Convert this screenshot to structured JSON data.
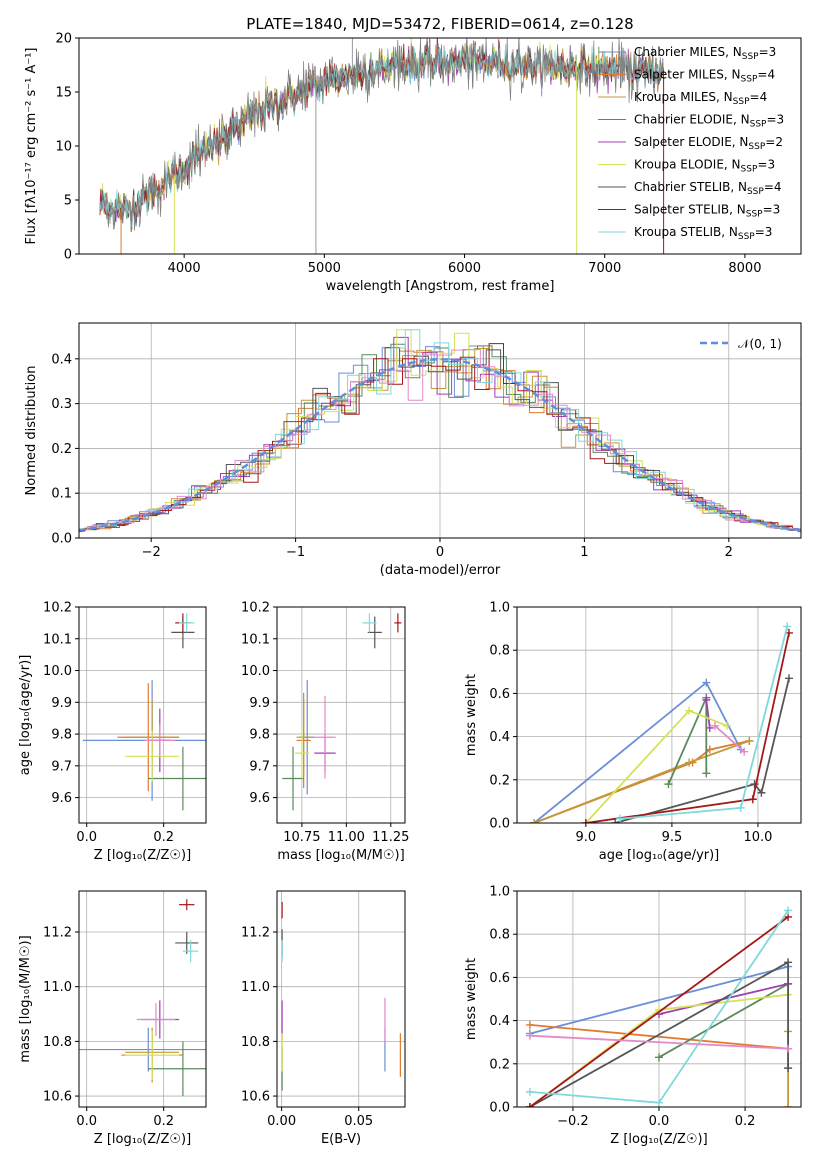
{
  "figure_title": "PLATE=1840, MJD=53472, FIBERID=0614, z=0.128",
  "colors": {
    "Chabrier MILES": "#6a8fd6",
    "Salpeter MILES": "#e07b30",
    "Kroupa MILES": "#c29a3a",
    "Chabrier ELODIE": "#5b8a5b",
    "Salpeter ELODIE": "#a33db3",
    "Kroupa ELODIE": "#d4e157",
    "Chabrier STELIB": "#555555",
    "Salpeter STELIB": "#a31818",
    "Kroupa STELIB": "#80d8dc",
    "extra_pink": "#e58ac9",
    "normal_curve": "#5b8ee0"
  },
  "chart_data": [
    {
      "id": "spectrum",
      "type": "line",
      "title": "PLATE=1840, MJD=53472, FIBERID=0614, z=0.128",
      "xlabel": "wavelength [Angstrom, rest frame]",
      "ylabel": "Flux [fλ10⁻¹⁷ erg cm⁻² s⁻¹ A⁻¹]",
      "xlim": [
        3250,
        8400
      ],
      "ylim": [
        0,
        20
      ],
      "xticks": [
        4000,
        5000,
        6000,
        7000,
        8000
      ],
      "yticks": [
        0,
        5,
        10,
        15,
        20
      ],
      "continuum": {
        "x": [
          3400,
          3600,
          3800,
          4000,
          4200,
          4500,
          5000,
          5500,
          6000,
          6500,
          7000,
          7400
        ],
        "y": [
          4.5,
          4.0,
          6.0,
          8.0,
          10.0,
          13.0,
          16.0,
          17.5,
          17.8,
          17.5,
          17.2,
          17.0
        ]
      },
      "legend": [
        {
          "name": "Chabrier MILES",
          "nssp": "3"
        },
        {
          "name": "Salpeter MILES",
          "nssp": "4"
        },
        {
          "name": "Kroupa MILES",
          "nssp": "4"
        },
        {
          "name": "Chabrier ELODIE",
          "nssp": "3"
        },
        {
          "name": "Salpeter ELODIE",
          "nssp": "2"
        },
        {
          "name": "Kroupa ELODIE",
          "nssp": "3"
        },
        {
          "name": "Chabrier STELIB",
          "nssp": "4"
        },
        {
          "name": "Salpeter STELIB",
          "nssp": "3"
        },
        {
          "name": "Kroupa STELIB",
          "nssp": "3"
        }
      ],
      "legend_placement": "right"
    },
    {
      "id": "residuals",
      "type": "step",
      "xlabel": "(data-model)/error",
      "ylabel": "Normed distribution",
      "xlim": [
        -2.5,
        2.5
      ],
      "ylim": [
        0,
        0.48
      ],
      "xticks": [
        -2,
        -1,
        0,
        1,
        2
      ],
      "yticks": [
        0.0,
        0.1,
        0.2,
        0.3,
        0.4
      ],
      "grid": true,
      "legend": "𝒩(0, 1)",
      "legend_placement": "top-right"
    },
    {
      "id": "age_vs_Z",
      "type": "errorbar",
      "xlabel": "Z [log₁₀(Z/Z☉)]",
      "ylabel": "age  [log₁₀(age/yr)]",
      "xlim": [
        -0.02,
        0.31
      ],
      "ylim": [
        9.52,
        10.2
      ],
      "xticks": [
        0.0,
        0.2
      ],
      "yticks": [
        9.6,
        9.7,
        9.8,
        9.9,
        10.0,
        10.1,
        10.2
      ],
      "grid": true,
      "points": [
        {
          "model": "Chabrier MILES",
          "x": 0.17,
          "y": 9.78,
          "xerr": 0.18,
          "yerr": 0.19
        },
        {
          "model": "Salpeter MILES",
          "x": 0.16,
          "y": 9.79,
          "xerr": 0.08,
          "yerr": 0.17
        },
        {
          "model": "Kroupa MILES",
          "x": 0.17,
          "y": 9.79,
          "xerr": 0.07,
          "yerr": 0.12
        },
        {
          "model": "Chabrier ELODIE",
          "x": 0.25,
          "y": 9.66,
          "xerr": 0.09,
          "yerr": 0.1
        },
        {
          "model": "Salpeter ELODIE",
          "x": 0.19,
          "y": 9.78,
          "xerr": 0.03,
          "yerr": 0.1
        },
        {
          "model": "Kroupa ELODIE",
          "x": 0.17,
          "y": 9.73,
          "xerr": 0.07,
          "yerr": 0.08
        },
        {
          "model": "Chabrier STELIB",
          "x": 0.25,
          "y": 10.12,
          "xerr": 0.03,
          "yerr": 0.05
        },
        {
          "model": "Salpeter STELIB",
          "x": 0.25,
          "y": 10.15,
          "xerr": 0.02,
          "yerr": 0.03
        },
        {
          "model": "Kroupa STELIB",
          "x": 0.26,
          "y": 10.15,
          "xerr": 0.02,
          "yerr": 0.03
        },
        {
          "model": "extra_pink",
          "x": 0.19,
          "y": 9.78,
          "xerr": 0.04,
          "yerr": 0.05
        }
      ]
    },
    {
      "id": "age_vs_mass",
      "type": "errorbar",
      "xlabel": "mass [log₁₀(M/M☉)]",
      "ylabel": "",
      "xlim": [
        10.61,
        11.33
      ],
      "ylim": [
        9.52,
        10.2
      ],
      "xticks": [
        10.75,
        11.0,
        11.25
      ],
      "yticks": [
        9.6,
        9.7,
        9.8,
        9.9,
        10.0,
        10.1,
        10.2
      ],
      "grid": true,
      "points": [
        {
          "model": "Chabrier MILES",
          "x": 10.78,
          "y": 9.79,
          "xerr": 0.04,
          "yerr": 0.18
        },
        {
          "model": "Salpeter MILES",
          "x": 10.76,
          "y": 9.78,
          "xerr": 0.04,
          "yerr": 0.15
        },
        {
          "model": "Kroupa MILES",
          "x": 10.76,
          "y": 9.79,
          "xerr": 0.04,
          "yerr": 0.12
        },
        {
          "model": "Chabrier ELODIE",
          "x": 10.7,
          "y": 9.66,
          "xerr": 0.06,
          "yerr": 0.1
        },
        {
          "model": "Salpeter ELODIE",
          "x": 10.88,
          "y": 9.74,
          "xerr": 0.06,
          "yerr": 0.06
        },
        {
          "model": "Kroupa ELODIE",
          "x": 10.75,
          "y": 9.74,
          "xerr": 0.04,
          "yerr": 0.08
        },
        {
          "model": "Chabrier STELIB",
          "x": 11.16,
          "y": 10.12,
          "xerr": 0.04,
          "yerr": 0.05
        },
        {
          "model": "Salpeter STELIB",
          "x": 11.29,
          "y": 10.15,
          "xerr": 0.02,
          "yerr": 0.03
        },
        {
          "model": "Kroupa STELIB",
          "x": 11.13,
          "y": 10.15,
          "xerr": 0.04,
          "yerr": 0.03
        },
        {
          "model": "extra_pink",
          "x": 10.88,
          "y": 9.79,
          "xerr": 0.06,
          "yerr": 0.13
        }
      ]
    },
    {
      "id": "massweight_vs_age",
      "type": "line",
      "xlabel": "age  [log₁₀(age/yr)]",
      "ylabel": "mass weight",
      "xlim": [
        8.6,
        10.25
      ],
      "ylim": [
        0,
        1.0
      ],
      "xticks": [
        9.0,
        9.5,
        10.0
      ],
      "yticks": [
        0.0,
        0.2,
        0.4,
        0.6,
        0.8,
        1.0
      ],
      "grid": true,
      "series": [
        {
          "model": "Chabrier MILES",
          "x": [
            8.7,
            9.7,
            9.9
          ],
          "y": [
            0.0,
            0.65,
            0.34
          ]
        },
        {
          "model": "Salpeter MILES",
          "x": [
            8.7,
            9.62,
            9.72,
            9.95
          ],
          "y": [
            0.0,
            0.28,
            0.34,
            0.38
          ]
        },
        {
          "model": "Kroupa MILES",
          "x": [
            8.7,
            9.6,
            9.95
          ],
          "y": [
            0.0,
            0.28,
            0.38
          ]
        },
        {
          "model": "Chabrier ELODIE",
          "x": [
            9.48,
            9.7,
            9.7
          ],
          "y": [
            0.18,
            0.58,
            0.23
          ]
        },
        {
          "model": "Salpeter ELODIE",
          "x": [
            9.7,
            9.72
          ],
          "y": [
            0.57,
            0.44
          ]
        },
        {
          "model": "Kroupa ELODIE",
          "x": [
            9.0,
            9.6,
            9.82
          ],
          "y": [
            0.0,
            0.52,
            0.45
          ]
        },
        {
          "model": "Chabrier STELIB",
          "x": [
            9.17,
            9.98,
            10.02,
            10.18
          ],
          "y": [
            0.0,
            0.18,
            0.14,
            0.67
          ]
        },
        {
          "model": "Salpeter STELIB",
          "x": [
            9.0,
            9.97,
            10.18
          ],
          "y": [
            0.0,
            0.11,
            0.88
          ]
        },
        {
          "model": "Kroupa STELIB",
          "x": [
            9.2,
            9.9,
            10.17
          ],
          "y": [
            0.02,
            0.07,
            0.91
          ]
        },
        {
          "model": "extra_pink",
          "x": [
            9.75,
            9.92
          ],
          "y": [
            0.45,
            0.33
          ]
        }
      ]
    },
    {
      "id": "mass_vs_Z",
      "type": "errorbar",
      "xlabel": "Z [log₁₀(Z/Z☉)]",
      "ylabel": "mass [log₁₀(M/M☉)]",
      "xlim": [
        -0.02,
        0.31
      ],
      "ylim": [
        10.56,
        11.35
      ],
      "xticks": [
        0.0,
        0.2
      ],
      "yticks": [
        10.6,
        10.8,
        11.0,
        11.2
      ],
      "grid": true,
      "points": [
        {
          "model": "Chabrier MILES",
          "x": 0.16,
          "y": 10.77,
          "xerr": 0.18,
          "yerr": 0.08
        },
        {
          "model": "Salpeter MILES",
          "x": 0.17,
          "y": 10.75,
          "xerr": 0.08,
          "yerr": 0.1
        },
        {
          "model": "Kroupa MILES",
          "x": 0.17,
          "y": 10.76,
          "xerr": 0.07,
          "yerr": 0.07
        },
        {
          "model": "Chabrier ELODIE",
          "x": 0.25,
          "y": 10.7,
          "xerr": 0.09,
          "yerr": 0.1
        },
        {
          "model": "Salpeter ELODIE",
          "x": 0.19,
          "y": 10.88,
          "xerr": 0.05,
          "yerr": 0.07
        },
        {
          "model": "Kroupa ELODIE",
          "x": 0.17,
          "y": 10.75,
          "xerr": 0.07,
          "yerr": 0.09
        },
        {
          "model": "Chabrier STELIB",
          "x": 0.26,
          "y": 11.16,
          "xerr": 0.03,
          "yerr": 0.04
        },
        {
          "model": "Salpeter STELIB",
          "x": 0.26,
          "y": 11.3,
          "xerr": 0.02,
          "yerr": 0.02
        },
        {
          "model": "Kroupa STELIB",
          "x": 0.27,
          "y": 11.13,
          "xerr": 0.02,
          "yerr": 0.04
        },
        {
          "model": "extra_pink",
          "x": 0.18,
          "y": 10.88,
          "xerr": 0.05,
          "yerr": 0.06
        }
      ]
    },
    {
      "id": "mass_vs_ebv",
      "type": "errorbar",
      "xlabel": "E(B-V)",
      "ylabel": "",
      "xlim": [
        -0.003,
        0.08
      ],
      "ylim": [
        10.56,
        11.35
      ],
      "xticks": [
        0.0,
        0.05
      ],
      "yticks": [
        10.6,
        10.8,
        11.0,
        11.2
      ],
      "grid": true,
      "points": [
        {
          "model": "Chabrier MILES",
          "x": 0.067,
          "y": 10.77,
          "xerr": 0,
          "yerr": 0.08
        },
        {
          "model": "Salpeter MILES",
          "x": 0.077,
          "y": 10.75,
          "xerr": 0,
          "yerr": 0.08
        },
        {
          "model": "extra_pink",
          "x": 0.067,
          "y": 10.88,
          "xerr": 0,
          "yerr": 0.08
        },
        {
          "model": "Chabrier ELODIE",
          "x": 0.0003,
          "y": 10.7,
          "xerr": 0,
          "yerr": 0.08
        },
        {
          "model": "Salpeter ELODIE",
          "x": 0.0003,
          "y": 10.88,
          "xerr": 0,
          "yerr": 0.07
        },
        {
          "model": "Kroupa ELODIE",
          "x": 0.0003,
          "y": 10.76,
          "xerr": 0,
          "yerr": 0.07
        },
        {
          "model": "Chabrier STELIB",
          "x": 0.0003,
          "y": 11.16,
          "xerr": 0,
          "yerr": 0.05
        },
        {
          "model": "Salpeter STELIB",
          "x": 0.0003,
          "y": 11.28,
          "xerr": 0,
          "yerr": 0.03
        },
        {
          "model": "Kroupa STELIB",
          "x": 0.0003,
          "y": 11.13,
          "xerr": 0,
          "yerr": 0.04
        }
      ]
    },
    {
      "id": "massweight_vs_Z",
      "type": "line",
      "xlabel": "Z [log₁₀(Z/Z☉)]",
      "ylabel": "mass weight",
      "xlim": [
        -0.33,
        0.33
      ],
      "ylim": [
        0,
        1.0
      ],
      "xticks": [
        -0.2,
        0.0,
        0.2
      ],
      "yticks": [
        0.0,
        0.2,
        0.4,
        0.6,
        0.8,
        1.0
      ],
      "grid": true,
      "series": [
        {
          "model": "Chabrier MILES",
          "x": [
            -0.3,
            0.3
          ],
          "y": [
            0.34,
            0.65
          ]
        },
        {
          "model": "Salpeter MILES",
          "x": [
            -0.3,
            0.3
          ],
          "y": [
            0.38,
            0.27
          ]
        },
        {
          "model": "Kroupa MILES",
          "x": [
            0.3,
            0.3
          ],
          "y": [
            0.0,
            0.35
          ]
        },
        {
          "model": "Chabrier ELODIE",
          "x": [
            0.0,
            0.3
          ],
          "y": [
            0.23,
            0.57
          ]
        },
        {
          "model": "Salpeter ELODIE",
          "x": [
            0.0,
            0.3
          ],
          "y": [
            0.43,
            0.57
          ]
        },
        {
          "model": "Kroupa ELODIE",
          "x": [
            -0.3,
            0.0,
            0.3
          ],
          "y": [
            0.0,
            0.45,
            0.52
          ]
        },
        {
          "model": "Chabrier STELIB",
          "x": [
            -0.3,
            0.3,
            0.3
          ],
          "y": [
            0.0,
            0.67,
            0.18
          ]
        },
        {
          "model": "Salpeter STELIB",
          "x": [
            -0.3,
            0.3
          ],
          "y": [
            0.0,
            0.88
          ]
        },
        {
          "model": "Kroupa STELIB",
          "x": [
            -0.3,
            0.0,
            0.3
          ],
          "y": [
            0.07,
            0.02,
            0.91
          ]
        },
        {
          "model": "extra_pink",
          "x": [
            -0.3,
            0.3
          ],
          "y": [
            0.33,
            0.27
          ]
        }
      ]
    }
  ]
}
